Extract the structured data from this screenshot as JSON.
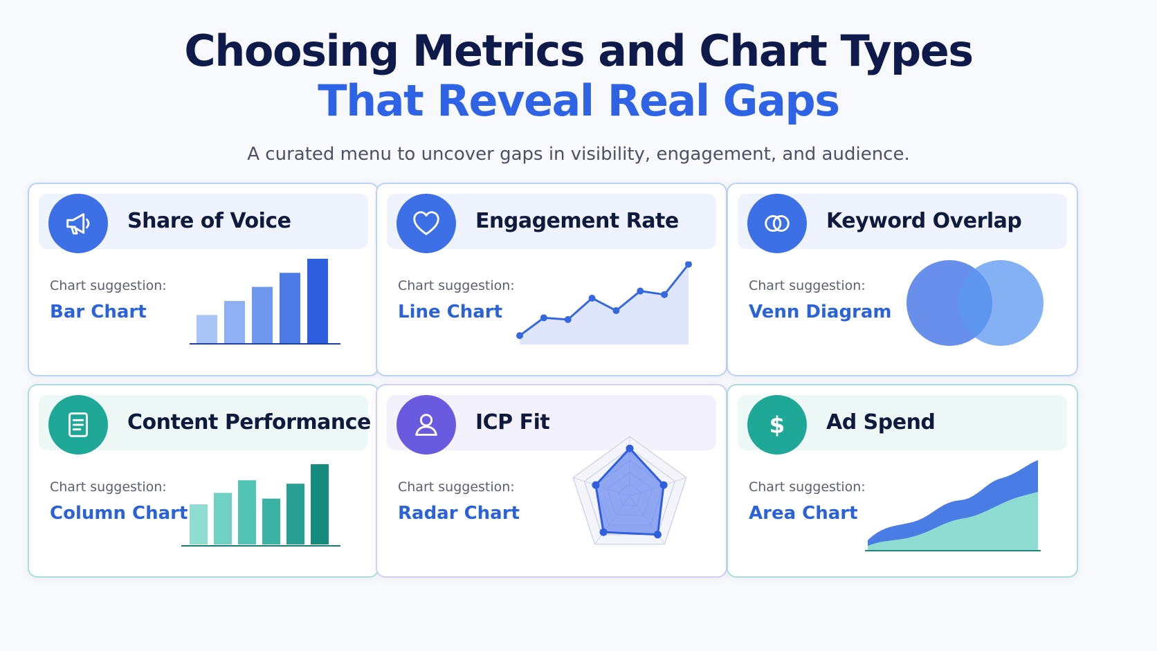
{
  "header": {
    "title_line1": "Choosing Metrics and Chart Types",
    "title_line2": "That Reveal Real Gaps",
    "subtitle": "A curated menu to uncover gaps in visibility, engagement, and audience."
  },
  "colors": {
    "navy": "#0d1a4a",
    "accent_blue": "#2f63e6",
    "teal": "#1fa898",
    "violet": "#6c5ce7"
  },
  "cards": [
    {
      "title": "Share of Voice",
      "icon": "megaphone-icon",
      "suggestion_label": "Chart suggestion:",
      "suggestion": "Bar Chart",
      "mini_chart": {
        "type": "bar",
        "values": [
          2,
          3,
          4,
          5,
          6
        ]
      }
    },
    {
      "title": "Engagement Rate",
      "icon": "heart-icon",
      "suggestion_label": "Chart suggestion:",
      "suggestion": "Line Chart",
      "mini_chart": {
        "type": "line",
        "values": [
          1,
          3,
          2.8,
          5.2,
          3.8,
          6,
          5.6,
          9
        ]
      }
    },
    {
      "title": "Keyword Overlap",
      "icon": "overlapping-rings-icon",
      "suggestion_label": "Chart suggestion:",
      "suggestion": "Venn Diagram",
      "mini_chart": {
        "type": "venn",
        "sets": 2
      }
    },
    {
      "title": "Content Performance",
      "icon": "document-icon",
      "suggestion_label": "Chart suggestion:",
      "suggestion": "Column Chart",
      "mini_chart": {
        "type": "column",
        "values": [
          3.5,
          4.5,
          5.6,
          4,
          5.3,
          7
        ]
      }
    },
    {
      "title": "ICP Fit",
      "icon": "user-icon",
      "suggestion_label": "Chart suggestion:",
      "suggestion": "Radar Chart",
      "mini_chart": {
        "type": "radar",
        "values": [
          0.8,
          0.6,
          0.8,
          0.75,
          0.6
        ]
      }
    },
    {
      "title": "Ad Spend",
      "icon": "dollar-icon",
      "suggestion_label": "Chart suggestion:",
      "suggestion": "Area Chart",
      "mini_chart": {
        "type": "area"
      }
    }
  ]
}
